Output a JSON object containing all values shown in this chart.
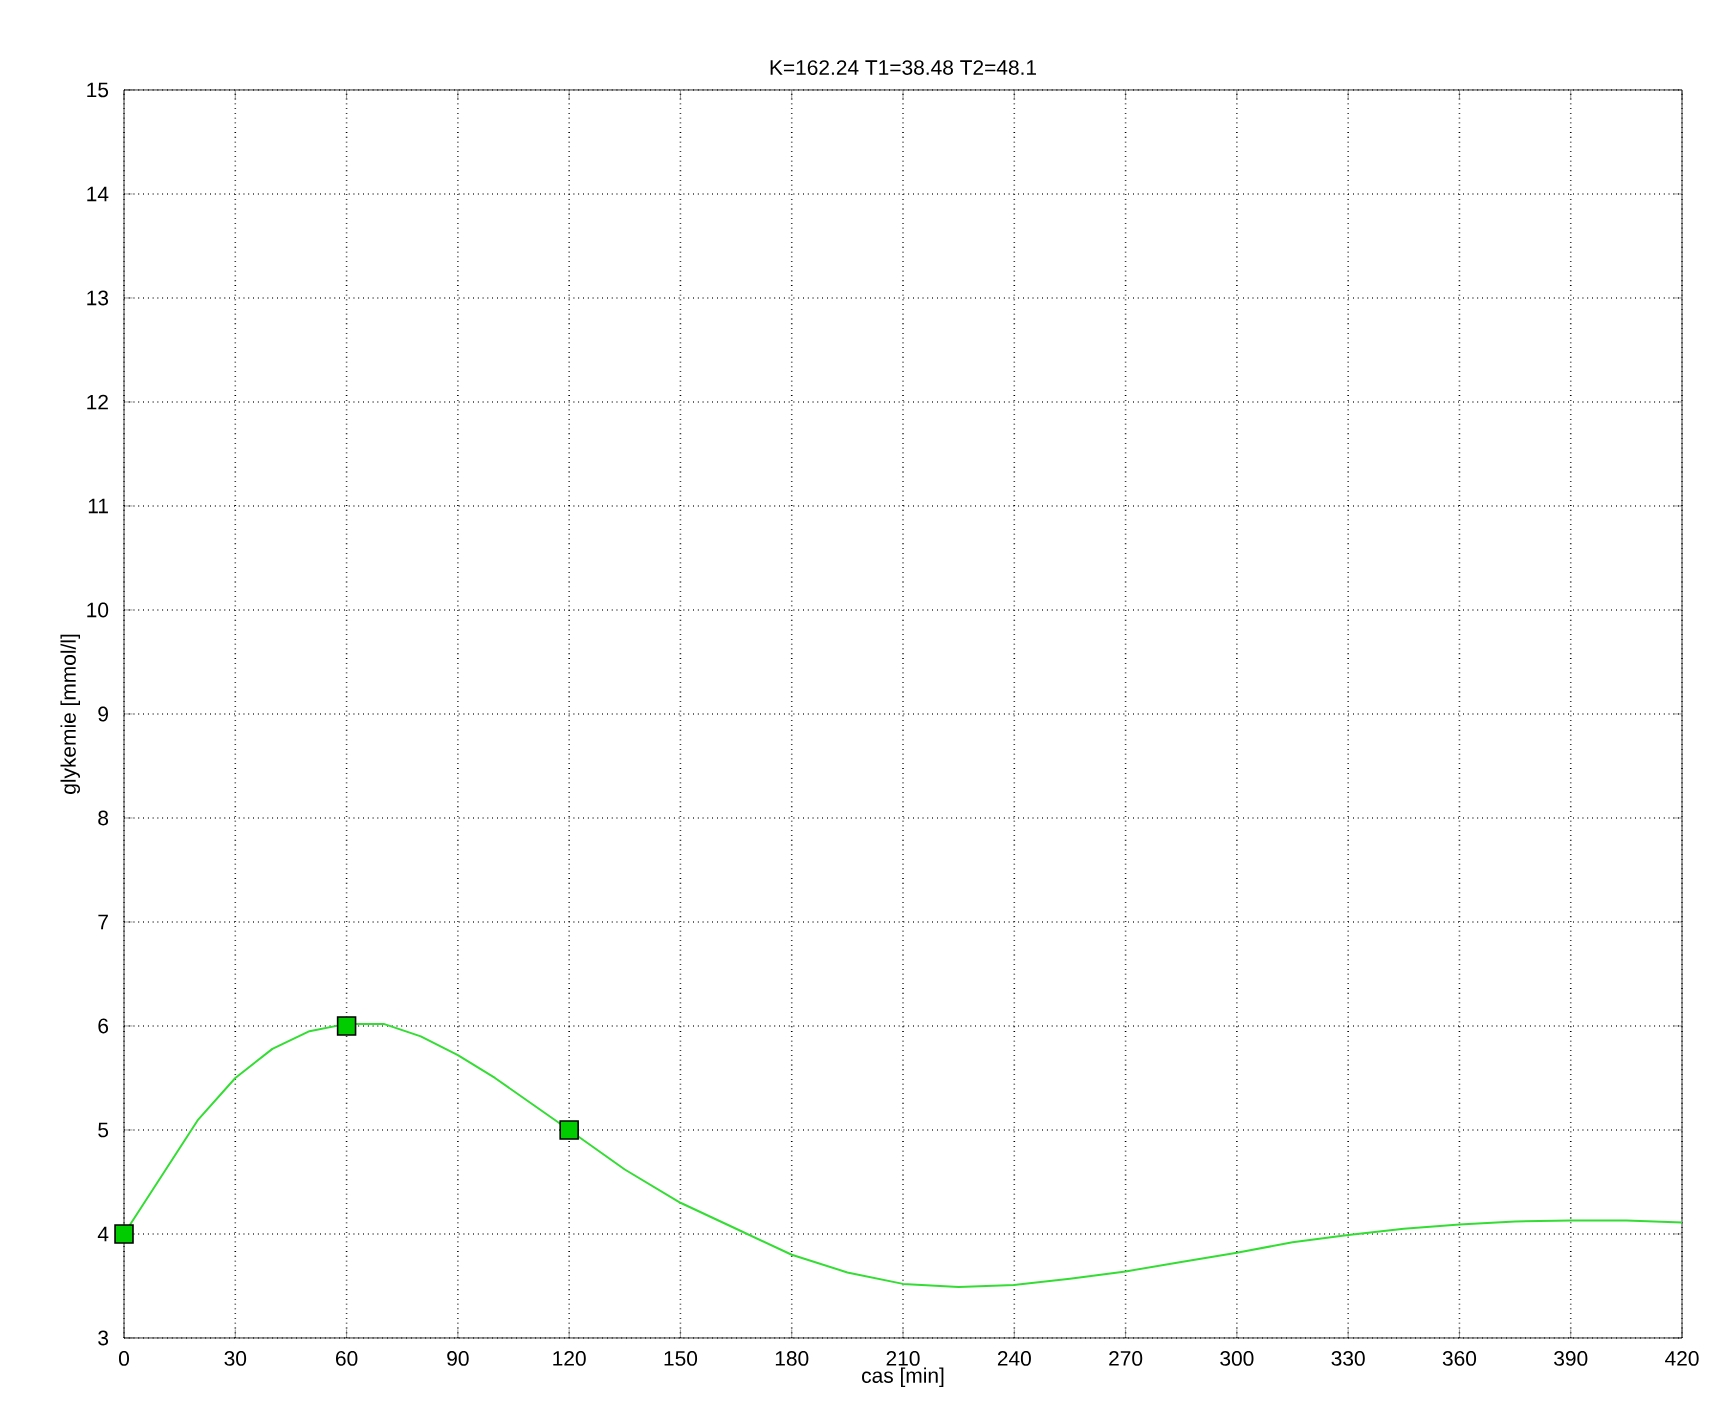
{
  "chart_data": {
    "type": "line",
    "title": "K=162.24  T1=38.48  T2=48.1",
    "xlabel": "cas [min]",
    "ylabel": "glykemie [mmol/l]",
    "series": [
      {
        "color": "#33dd33",
        "marker": "none",
        "x": [
          0,
          10,
          20,
          30,
          40,
          50,
          60,
          70,
          80,
          90,
          100,
          110,
          120,
          135,
          150,
          165,
          180,
          195,
          210,
          225,
          240,
          255,
          270,
          285,
          300,
          315,
          330,
          345,
          360,
          375,
          390,
          405,
          420
        ],
        "values": [
          4.0,
          4.55,
          5.1,
          5.5,
          5.78,
          5.95,
          6.02,
          6.02,
          5.9,
          5.72,
          5.5,
          5.25,
          5.0,
          4.62,
          4.3,
          4.05,
          3.8,
          3.63,
          3.52,
          3.49,
          3.51,
          3.57,
          3.64,
          3.73,
          3.82,
          3.92,
          3.99,
          4.05,
          4.09,
          4.12,
          4.13,
          4.13,
          4.11
        ]
      },
      {
        "type": "scatter",
        "color": "#00cc00",
        "marker": "square",
        "x": [
          0,
          60,
          120
        ],
        "values": [
          4,
          6,
          5
        ]
      }
    ],
    "xlim": [
      0,
      420
    ],
    "ylim": [
      3,
      15
    ],
    "xticks": [
      0,
      30,
      60,
      90,
      120,
      150,
      180,
      210,
      240,
      270,
      300,
      330,
      360,
      390,
      420
    ],
    "yticks": [
      3,
      4,
      5,
      6,
      7,
      8,
      9,
      10,
      11,
      12,
      13,
      14,
      15
    ],
    "grid": true
  }
}
